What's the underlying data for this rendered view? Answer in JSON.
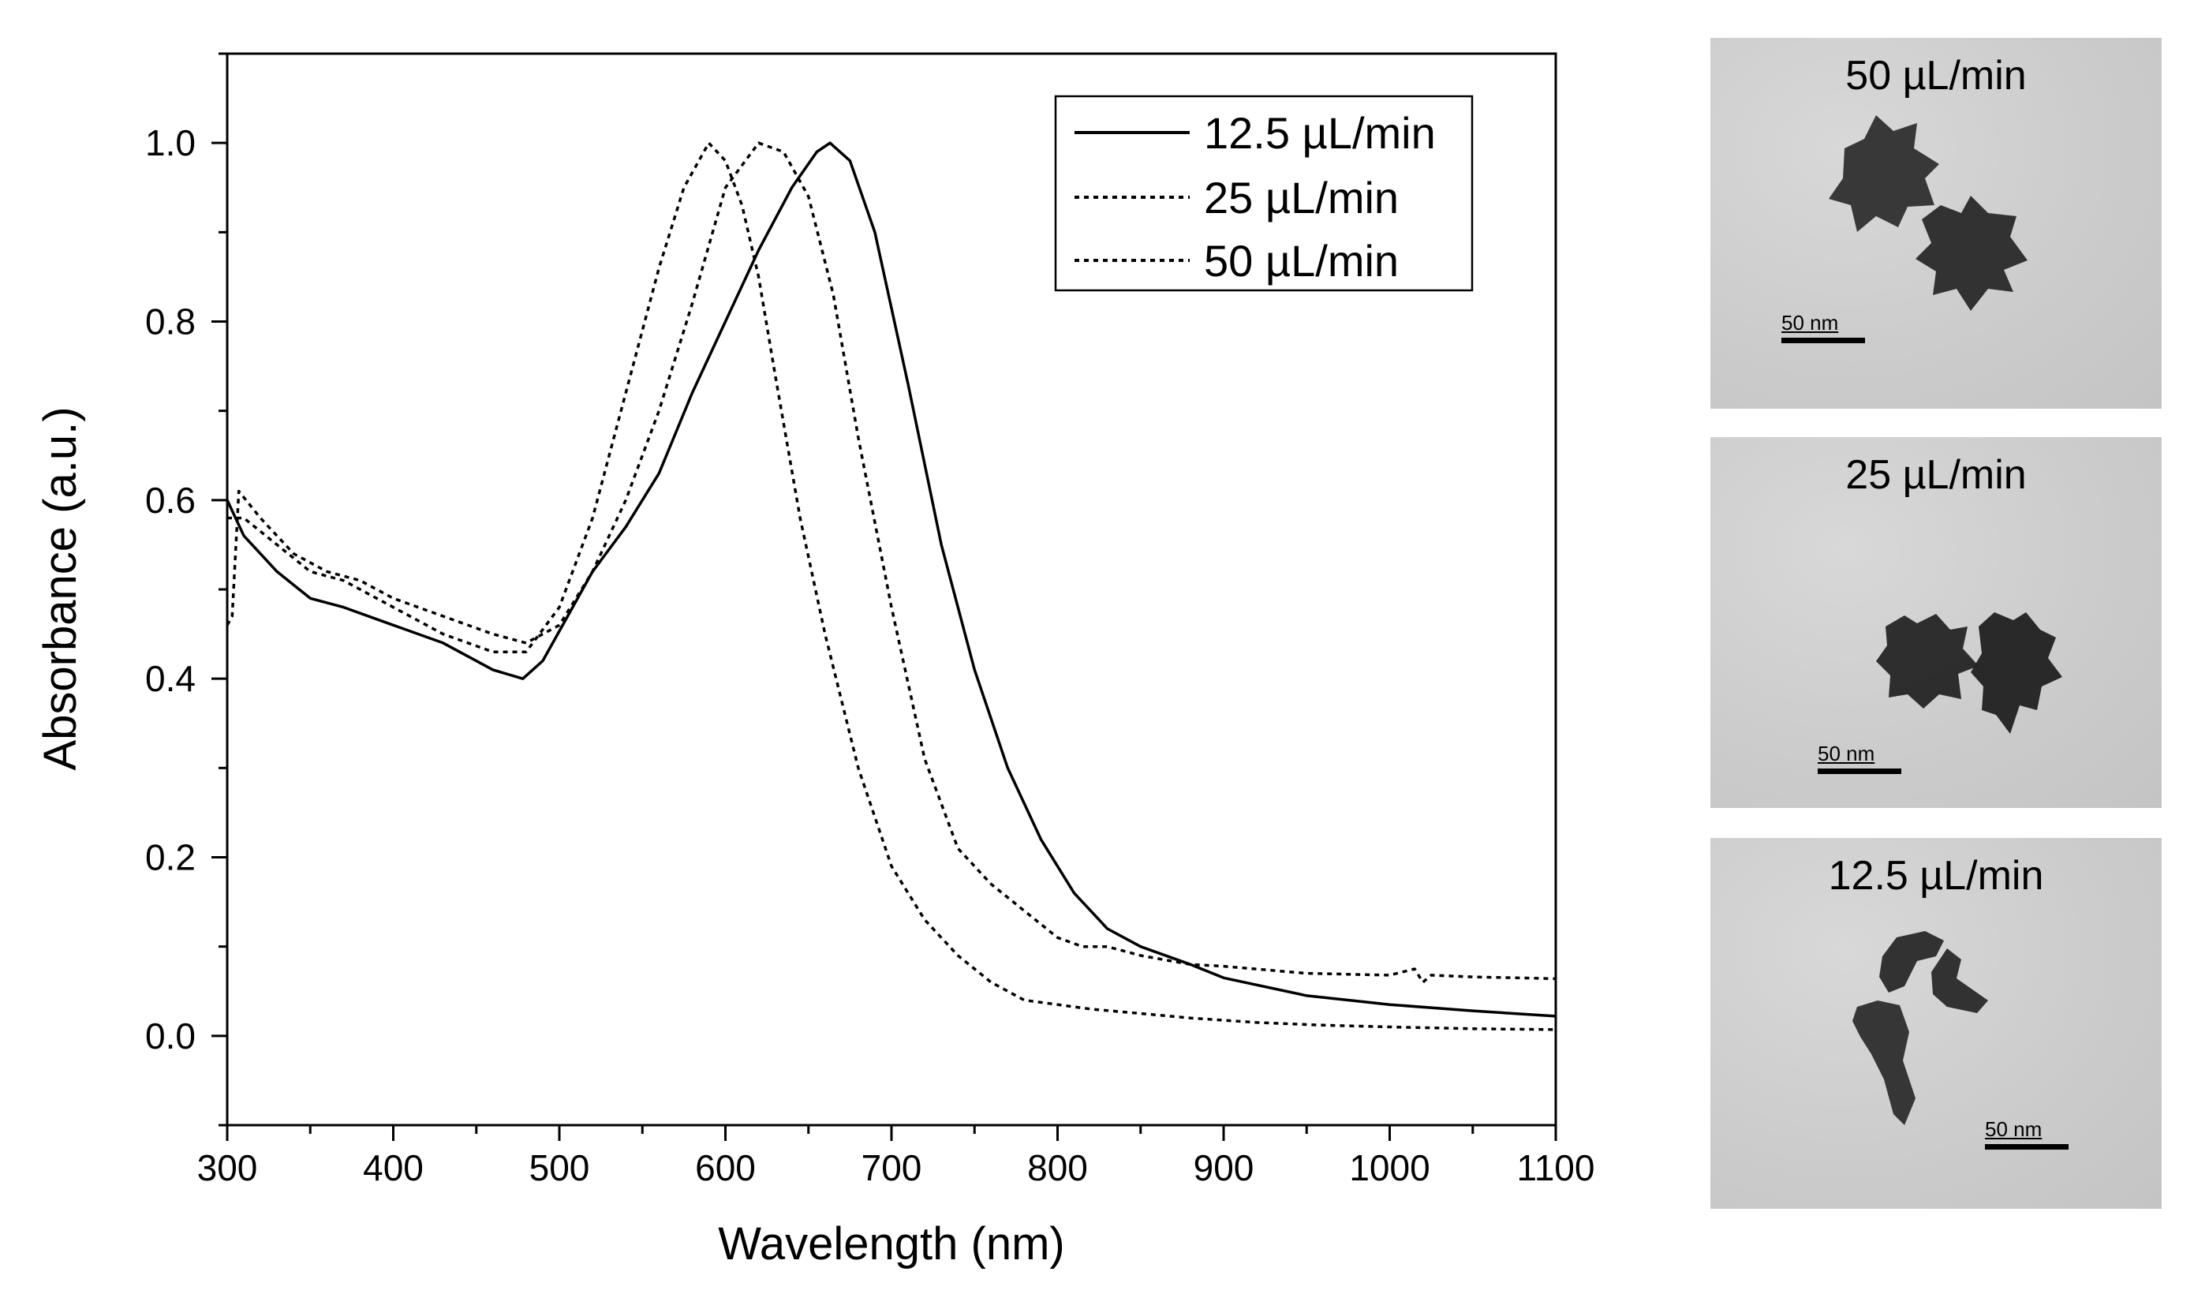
{
  "chart_data": {
    "type": "line",
    "title": "",
    "xlabel": "Wavelength (nm)",
    "ylabel": "Absorbance (a.u.)",
    "xlim": [
      300,
      1100
    ],
    "ylim": [
      -0.1,
      1.1
    ],
    "xticks": [
      300,
      400,
      500,
      600,
      700,
      800,
      900,
      1000,
      1100
    ],
    "xtick_labels": [
      "300",
      "400",
      "500",
      "600",
      "700",
      "800",
      "900",
      "1000",
      "1100"
    ],
    "yticks": [
      0.0,
      0.2,
      0.4,
      0.6,
      0.8,
      1.0
    ],
    "ytick_labels": [
      "0.0",
      "0.2",
      "0.4",
      "0.6",
      "0.8",
      "1.0"
    ],
    "grid": false,
    "legend_position": "top-right",
    "series": [
      {
        "name": "12.5 µL/min",
        "style": "solid",
        "x": [
          300,
          310,
          330,
          350,
          370,
          400,
          430,
          460,
          478,
          490,
          505,
          520,
          540,
          560,
          580,
          600,
          620,
          640,
          655,
          663,
          675,
          690,
          710,
          730,
          750,
          770,
          790,
          810,
          830,
          850,
          880,
          900,
          950,
          1000,
          1050,
          1100
        ],
        "y": [
          0.6,
          0.56,
          0.52,
          0.49,
          0.48,
          0.46,
          0.44,
          0.41,
          0.4,
          0.42,
          0.47,
          0.52,
          0.57,
          0.63,
          0.72,
          0.8,
          0.88,
          0.95,
          0.99,
          1.0,
          0.98,
          0.9,
          0.73,
          0.55,
          0.41,
          0.3,
          0.22,
          0.16,
          0.12,
          0.1,
          0.08,
          0.065,
          0.045,
          0.035,
          0.028,
          0.022
        ]
      },
      {
        "name": "25 µL/min",
        "style": "dotted",
        "x": [
          300,
          303,
          307,
          320,
          340,
          360,
          380,
          400,
          430,
          460,
          480,
          500,
          520,
          540,
          560,
          580,
          600,
          620,
          635,
          650,
          665,
          680,
          700,
          720,
          740,
          760,
          780,
          800,
          815,
          830,
          850,
          880,
          900,
          950,
          1000,
          1015,
          1020,
          1025,
          1050,
          1100
        ],
        "y": [
          0.46,
          0.47,
          0.61,
          0.58,
          0.54,
          0.52,
          0.51,
          0.49,
          0.47,
          0.45,
          0.44,
          0.46,
          0.52,
          0.6,
          0.7,
          0.82,
          0.95,
          1.0,
          0.99,
          0.94,
          0.83,
          0.67,
          0.48,
          0.31,
          0.21,
          0.17,
          0.14,
          0.11,
          0.1,
          0.1,
          0.09,
          0.08,
          0.078,
          0.07,
          0.068,
          0.075,
          0.06,
          0.068,
          0.066,
          0.064
        ]
      },
      {
        "name": "50 µL/min",
        "style": "dotted",
        "x": [
          300,
          310,
          330,
          350,
          370,
          400,
          430,
          460,
          480,
          500,
          520,
          540,
          560,
          575,
          590,
          600,
          610,
          620,
          630,
          645,
          660,
          680,
          700,
          720,
          740,
          760,
          780,
          800,
          820,
          850,
          880,
          920,
          960,
          1000,
          1050,
          1100
        ],
        "y": [
          0.58,
          0.58,
          0.55,
          0.52,
          0.51,
          0.48,
          0.45,
          0.43,
          0.43,
          0.48,
          0.58,
          0.72,
          0.86,
          0.95,
          1.0,
          0.98,
          0.93,
          0.85,
          0.74,
          0.58,
          0.45,
          0.3,
          0.19,
          0.13,
          0.09,
          0.06,
          0.04,
          0.035,
          0.03,
          0.025,
          0.02,
          0.015,
          0.012,
          0.01,
          0.008,
          0.007
        ]
      }
    ]
  },
  "tem_panels": [
    {
      "label": "50 µL/min",
      "scale_label": "50 nm"
    },
    {
      "label": "25 µL/min",
      "scale_label": "50 nm"
    },
    {
      "label": "12.5 µL/min",
      "scale_label": "50 nm"
    }
  ]
}
